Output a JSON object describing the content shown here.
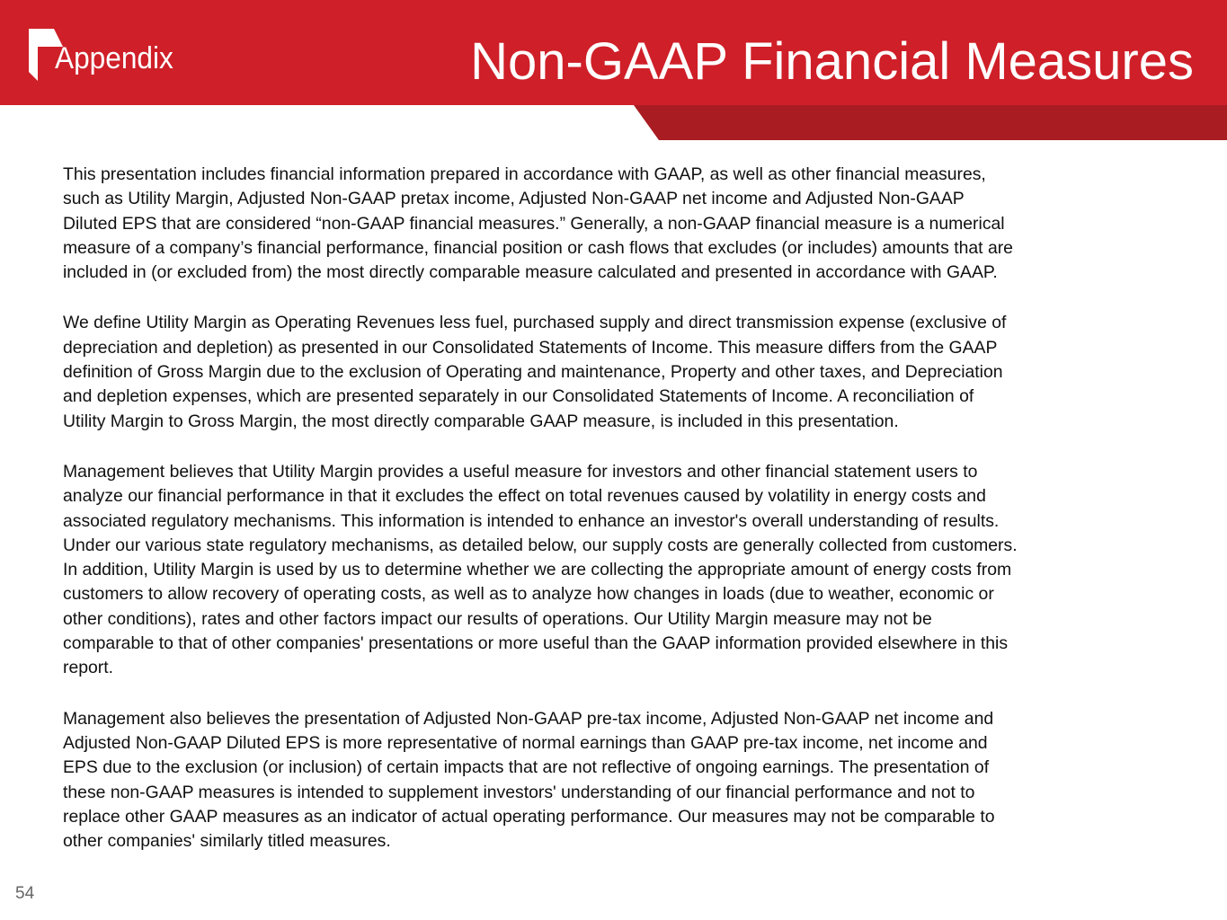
{
  "header": {
    "section": "Appendix",
    "title": "Non-GAAP Financial Measures",
    "colors": {
      "brand_red": "#cf1f28",
      "stripe_red": "#a91c22"
    }
  },
  "body": {
    "paragraphs": [
      [
        "This presentation includes financial information prepared in accordance with GAAP, as well as other financial measures,",
        "such as Utility Margin, Adjusted Non-GAAP pretax income, Adjusted Non-GAAP net income and Adjusted Non-GAAP",
        "Diluted EPS that are considered “non-GAAP financial measures.” Generally, a non-GAAP financial measure is a numerical",
        "measure of a company’s financial performance, financial position or cash flows that excludes (or includes) amounts that are",
        "included in (or excluded from) the most directly comparable measure calculated and presented in accordance with GAAP."
      ],
      [
        "We define Utility Margin as Operating Revenues less fuel, purchased supply and direct transmission expense (exclusive of",
        "depreciation and depletion) as presented in our Consolidated Statements of Income. This measure differs from the GAAP",
        "definition of Gross Margin due to the exclusion of Operating and maintenance, Property and other taxes, and Depreciation",
        "and depletion expenses, which are presented separately in our Consolidated Statements of Income. A reconciliation of",
        "Utility Margin to Gross Margin, the most directly comparable GAAP measure, is included in this presentation."
      ],
      [
        "Management believes that Utility Margin provides a useful measure for investors and other financial statement users to",
        "analyze our financial performance in that it excludes the effect on total revenues caused by volatility in energy costs and",
        "associated regulatory mechanisms. This information is intended to enhance an investor's overall understanding of results.",
        "Under our various state regulatory mechanisms, as detailed below, our supply costs are generally collected from customers.",
        "In addition, Utility Margin is used by us to determine whether we are collecting the appropriate amount of energy costs from",
        "customers to allow recovery of operating costs, as well as to analyze how changes in loads (due to weather, economic or",
        "other conditions), rates and other factors impact our results of operations. Our Utility Margin measure may not be",
        "comparable to that of other companies' presentations or more useful than the GAAP information provided elsewhere in this",
        "report."
      ],
      [
        "Management also believes the presentation of Adjusted Non-GAAP pre-tax income, Adjusted Non-GAAP net income and",
        "Adjusted Non-GAAP Diluted EPS is more representative of normal earnings than GAAP pre-tax income, net income and",
        "EPS due to the exclusion (or inclusion) of certain impacts that are not reflective of ongoing earnings. The presentation of",
        "these non-GAAP measures is intended to supplement investors' understanding of our financial performance and not to",
        "replace other GAAP measures as an indicator of actual operating performance.  Our measures may not be comparable to",
        "other companies' similarly titled measures."
      ]
    ]
  },
  "footer": {
    "page_number": "54"
  }
}
